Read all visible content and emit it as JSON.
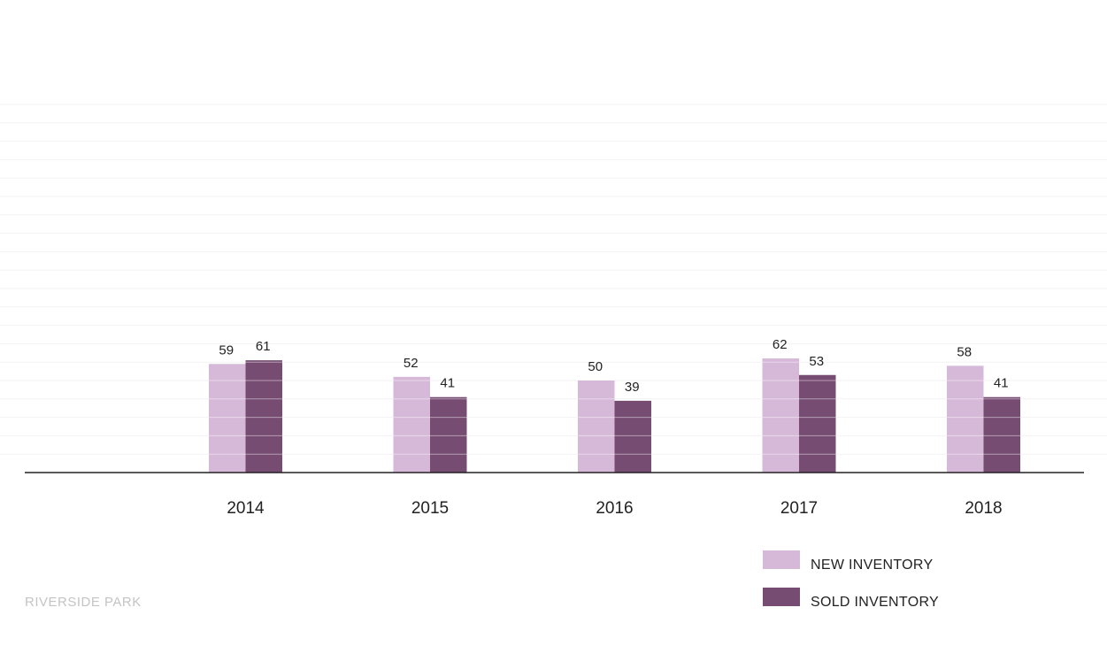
{
  "chart_data": {
    "type": "bar",
    "title": "",
    "xlabel": "",
    "ylabel": "",
    "categories": [
      "2014",
      "2015",
      "2016",
      "2017",
      "2018"
    ],
    "series": [
      {
        "name": "NEW INVENTORY",
        "values": [
          59,
          52,
          50,
          62,
          58
        ],
        "color": "#d6b8d8"
      },
      {
        "name": "SOLD INVENTORY",
        "values": [
          61,
          41,
          39,
          53,
          41
        ],
        "color": "#774c72"
      }
    ],
    "ylim": [
      0,
      200
    ],
    "grid": true,
    "legend": "bottom-right",
    "colors": {
      "grid": "#f2f2f2",
      "bar_line": "#ffffff",
      "axis": "#222222"
    }
  },
  "footer": {
    "text": "RIVERSIDE PARK"
  }
}
